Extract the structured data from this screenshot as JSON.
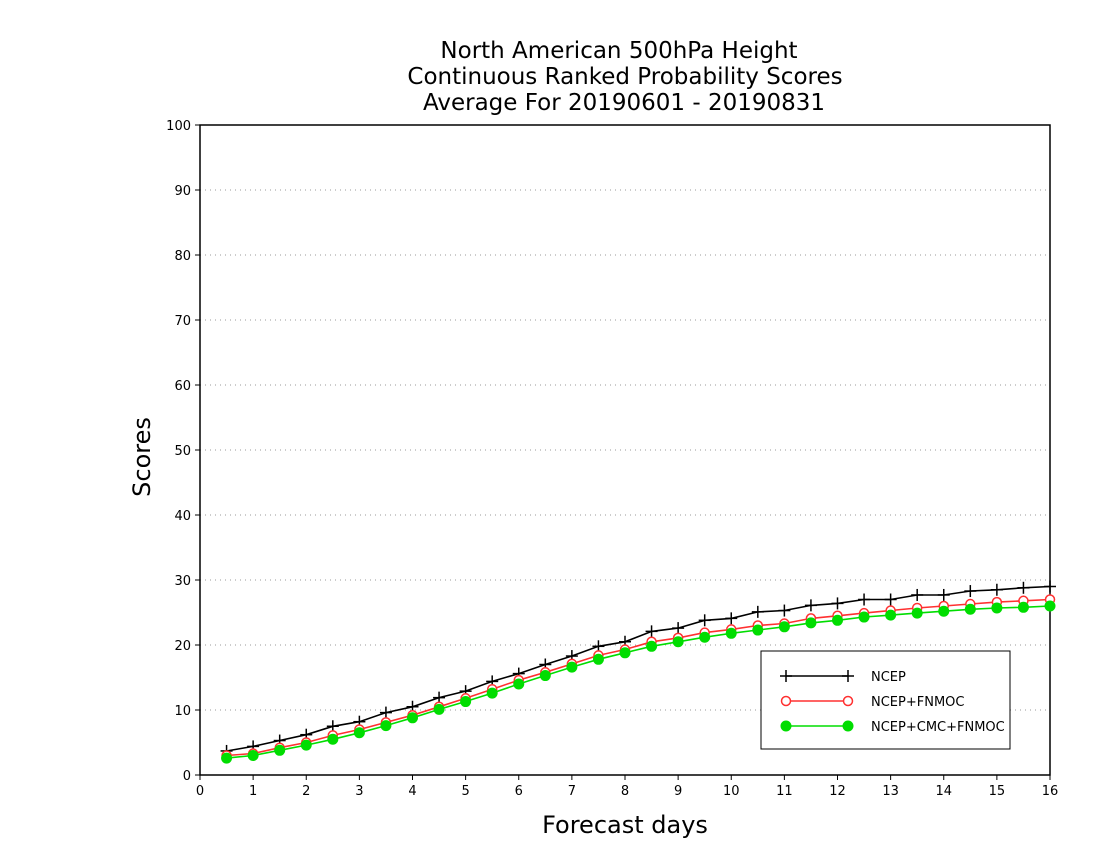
{
  "chart_data": {
    "type": "line",
    "title": [
      "North American 500hPa Height",
      "Continuous Ranked Probability Scores",
      "Average For 20190601 - 20190831"
    ],
    "xlabel": "Forecast days",
    "ylabel": "Scores",
    "xlim": [
      0,
      16
    ],
    "ylim": [
      0,
      100
    ],
    "xticks": [
      0,
      1,
      2,
      3,
      4,
      5,
      6,
      7,
      8,
      9,
      10,
      11,
      12,
      13,
      14,
      15,
      16
    ],
    "yticks": [
      0,
      10,
      20,
      30,
      40,
      50,
      60,
      70,
      80,
      90,
      100
    ],
    "grid": "horizontal-dotted",
    "legend_position": "lower-right",
    "x": [
      0.5,
      1,
      1.5,
      2,
      2.5,
      3,
      3.5,
      4,
      4.5,
      5,
      5.5,
      6,
      6.5,
      7,
      7.5,
      8,
      8.5,
      9,
      9.5,
      10,
      10.5,
      11,
      11.5,
      12,
      12.5,
      13,
      13.5,
      14,
      14.5,
      15,
      15.5,
      16
    ],
    "series": [
      {
        "name": "NCEP",
        "color": "#000000",
        "marker": "plus",
        "values": [
          3.7,
          4.4,
          5.3,
          6.2,
          7.5,
          8.2,
          9.6,
          10.5,
          11.9,
          12.9,
          14.4,
          15.6,
          17.0,
          18.3,
          19.8,
          20.5,
          22.1,
          22.6,
          23.8,
          24.1,
          25.1,
          25.3,
          26.1,
          26.4,
          27.0,
          27.0,
          27.7,
          27.7,
          28.3,
          28.5,
          28.8,
          29.0
        ]
      },
      {
        "name": "NCEP+FNMOC",
        "color": "#ff3030",
        "marker": "open-circle",
        "values": [
          3.0,
          3.3,
          4.2,
          5.0,
          6.1,
          7.0,
          8.1,
          9.2,
          10.5,
          11.8,
          13.2,
          14.6,
          15.8,
          17.1,
          18.4,
          19.3,
          20.5,
          21.1,
          21.9,
          22.4,
          23.0,
          23.3,
          24.1,
          24.5,
          24.9,
          25.3,
          25.7,
          26.0,
          26.3,
          26.6,
          26.8,
          27.0
        ]
      },
      {
        "name": "NCEP+CMC+FNMOC",
        "color": "#00dd00",
        "marker": "filled-circle",
        "values": [
          2.6,
          3.0,
          3.8,
          4.6,
          5.5,
          6.5,
          7.6,
          8.8,
          10.1,
          11.3,
          12.6,
          14.0,
          15.3,
          16.6,
          17.8,
          18.8,
          19.8,
          20.5,
          21.2,
          21.8,
          22.3,
          22.8,
          23.4,
          23.8,
          24.3,
          24.6,
          24.9,
          25.2,
          25.5,
          25.7,
          25.8,
          26.0
        ]
      }
    ]
  }
}
